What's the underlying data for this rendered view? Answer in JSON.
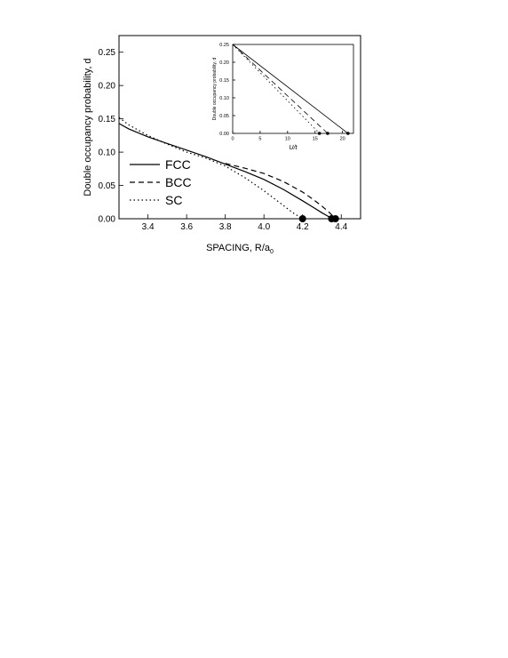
{
  "chart_data": [
    {
      "type": "line",
      "xlabel": "SPACING, R/a",
      "xlabel_subscript": "0",
      "ylabel": "Double occupancy probability, d",
      "xlim": [
        3.25,
        4.5
      ],
      "ylim": [
        0,
        0.275
      ],
      "xticks": [
        "3.4",
        "3.6",
        "3.8",
        "4.0",
        "4.2",
        "4.4"
      ],
      "yticks": [
        "0.00",
        "0.05",
        "0.10",
        "0.15",
        "0.20",
        "0.25"
      ],
      "grid": false,
      "legend": "bottom-left",
      "series": [
        {
          "name": "FCC",
          "style": "solid",
          "x": [
            3.25,
            3.3,
            3.4,
            3.5,
            3.6,
            3.7,
            3.8,
            3.9,
            4.0,
            4.1,
            4.2,
            4.25,
            4.3,
            4.33,
            4.35
          ],
          "y": [
            0.143,
            0.135,
            0.123,
            0.113,
            0.103,
            0.093,
            0.082,
            0.071,
            0.059,
            0.044,
            0.027,
            0.018,
            0.009,
            0.004,
            0.0
          ]
        },
        {
          "name": "BCC",
          "style": "dashed",
          "x": [
            3.8,
            3.9,
            4.0,
            4.1,
            4.2,
            4.25,
            4.3,
            4.34,
            4.37
          ],
          "y": [
            0.083,
            0.076,
            0.068,
            0.056,
            0.04,
            0.03,
            0.019,
            0.009,
            0.0
          ]
        },
        {
          "name": "SC",
          "style": "dotted",
          "x": [
            3.25,
            3.3,
            3.4,
            3.5,
            3.6,
            3.7,
            3.8,
            3.9,
            4.0,
            4.1,
            4.15,
            4.2
          ],
          "y": [
            0.152,
            0.141,
            0.125,
            0.112,
            0.1,
            0.091,
            0.079,
            0.062,
            0.042,
            0.02,
            0.009,
            0.0
          ]
        }
      ],
      "markers": {
        "x": [
          4.2,
          4.35,
          4.37
        ],
        "y": [
          0,
          0,
          0
        ]
      }
    },
    {
      "type": "line",
      "xlabel": "U/t",
      "ylabel": "Double occupancy probability, d",
      "xlim": [
        0,
        22
      ],
      "ylim": [
        0,
        0.25
      ],
      "xticks": [
        "0",
        "5",
        "10",
        "15",
        "20"
      ],
      "yticks": [
        "0.00",
        "0.05",
        "0.10",
        "0.15",
        "0.20",
        "0.25"
      ],
      "grid": false,
      "series": [
        {
          "name": "FCC",
          "style": "solid",
          "x": [
            0,
            21
          ],
          "y": [
            0.25,
            0
          ]
        },
        {
          "name": "BCC",
          "style": "dashed",
          "x": [
            0,
            17.3
          ],
          "y": [
            0.25,
            0
          ]
        },
        {
          "name": "SC",
          "style": "dotted",
          "x": [
            0,
            15.8
          ],
          "y": [
            0.25,
            0
          ]
        }
      ],
      "markers": {
        "x": [
          15.8,
          17.3,
          21
        ],
        "y": [
          0,
          0,
          0
        ]
      }
    }
  ]
}
